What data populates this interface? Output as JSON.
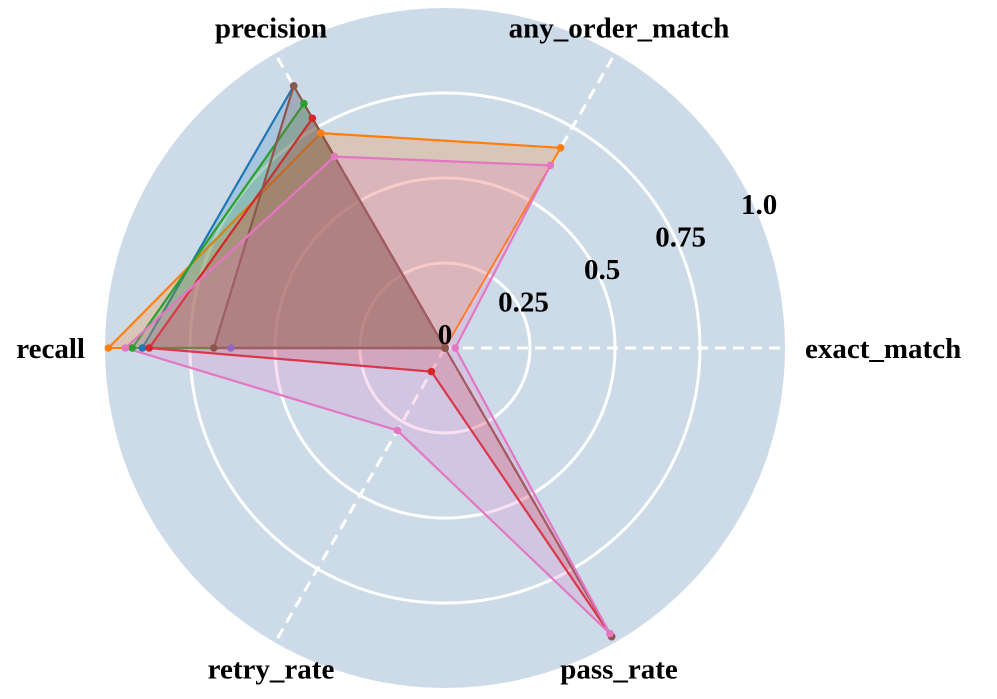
{
  "chart_data": {
    "type": "radar",
    "axes": [
      "exact_match",
      "any_order_match",
      "precision",
      "recall",
      "retry_rate",
      "pass_rate"
    ],
    "rlim": [
      0,
      1.0
    ],
    "radial_ticks": [
      0,
      0.25,
      0.5,
      0.75,
      1.0
    ],
    "radial_tick_labels": [
      "0",
      "0.25",
      "0.5",
      "0.75",
      "1.0"
    ],
    "grid": true,
    "background_color": "#cddbe9",
    "series": [
      {
        "color": "#1f77b4",
        "values": [
          0.0,
          0.0,
          0.89,
          0.89,
          0.0,
          0.0
        ]
      },
      {
        "color": "#ff7f0e",
        "values": [
          0.0,
          0.68,
          0.73,
          0.99,
          0.0,
          0.0
        ]
      },
      {
        "color": "#2ca02c",
        "values": [
          0.0,
          0.0,
          0.83,
          0.92,
          0.0,
          0.0
        ]
      },
      {
        "color": "#d62728",
        "values": [
          0.0,
          0.0,
          0.78,
          0.87,
          0.08,
          0.98
        ]
      },
      {
        "color": "#9467bd",
        "values": [
          0.0,
          0.0,
          0.0,
          0.63,
          0.0,
          0.0
        ]
      },
      {
        "color": "#8c564b",
        "values": [
          0.0,
          0.0,
          0.89,
          0.68,
          0.0,
          0.98
        ]
      },
      {
        "color": "#e377c2",
        "values": [
          0.03,
          0.62,
          0.65,
          0.94,
          0.28,
          0.97
        ]
      }
    ]
  }
}
